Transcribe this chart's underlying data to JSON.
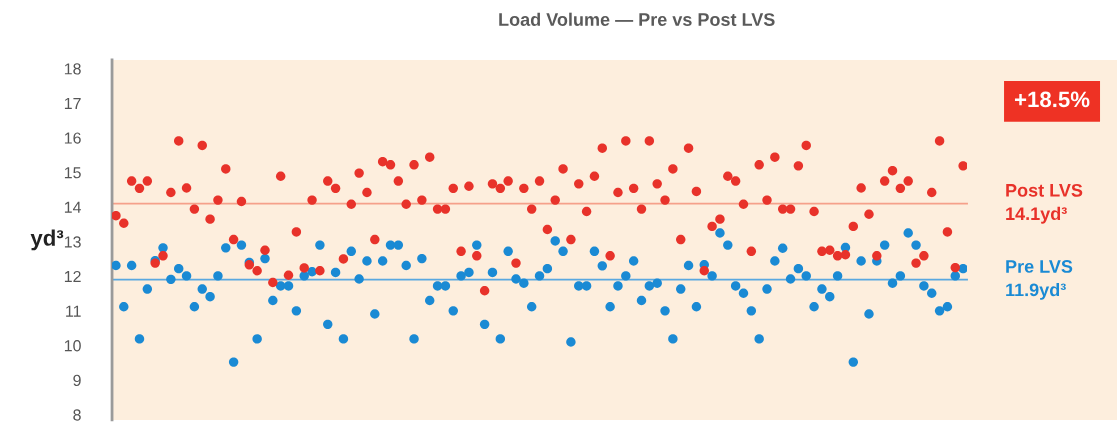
{
  "chart_data": {
    "type": "scatter",
    "title": "Load Volume — Pre vs Post LVS",
    "ylabel": "yd³",
    "categories": [
      null,
      null,
      null,
      null,
      null,
      null,
      null,
      null,
      null,
      null,
      null,
      null,
      null,
      null,
      null,
      null,
      null,
      null,
      null,
      null,
      null,
      null,
      null,
      null,
      null,
      null,
      null,
      null,
      null,
      null,
      null,
      null,
      null,
      null,
      null,
      null,
      null,
      null,
      null,
      null,
      null,
      null,
      null,
      null,
      null,
      null,
      null,
      null,
      null,
      null,
      null,
      null,
      null,
      null,
      null,
      null,
      null,
      null,
      null,
      null,
      null,
      null,
      null,
      null,
      null,
      null,
      null,
      null,
      null,
      null,
      null,
      null,
      null,
      null,
      null,
      null,
      null,
      null,
      null,
      null,
      null,
      null,
      null,
      null,
      null,
      null,
      null,
      null,
      null,
      null,
      null,
      null,
      null,
      null,
      null,
      null,
      null,
      null,
      null,
      null,
      null,
      null,
      null,
      null,
      null,
      null,
      null,
      null,
      null
    ],
    "series": [
      {
        "color": "#e8322a",
        "values": [
          13.75,
          13.53,
          14.75,
          14.54,
          14.75,
          12.38,
          12.59,
          14.42,
          15.91,
          14.55,
          13.94,
          15.78,
          13.65,
          14.2,
          15.1,
          13.06,
          14.16,
          12.33,
          12.16,
          12.75,
          11.82,
          14.89,
          12.03,
          13.28,
          12.24,
          14.2,
          12.16,
          14.75,
          14.54,
          12.5,
          14.08,
          14.98,
          14.42,
          13.06,
          15.31,
          15.22,
          14.75,
          14.08,
          15.22,
          14.2,
          15.44,
          13.94,
          13.94,
          14.54,
          12.72,
          14.6,
          12.59,
          11.58,
          14.67,
          14.54,
          14.75,
          12.38,
          14.54,
          13.94,
          14.75,
          13.35,
          14.2,
          15.1,
          13.06,
          14.67,
          13.87,
          14.89,
          15.7,
          12.59,
          14.42,
          15.91,
          14.54,
          13.94,
          15.91,
          14.67,
          14.2,
          15.1,
          13.06,
          15.7,
          14.45,
          12.16,
          13.44,
          13.65,
          14.89,
          14.75,
          14.08,
          12.72,
          15.22,
          14.2,
          15.44,
          13.94,
          13.94,
          15.19,
          15.78,
          13.87,
          12.72,
          12.75,
          12.59,
          12.62,
          13.44,
          14.55,
          13.79,
          12.59,
          14.75,
          15.05,
          14.54,
          14.75,
          12.38,
          12.59,
          14.42,
          15.91,
          13.28,
          12.25,
          15.19
        ]
      },
      {
        "color": "#1a8ad4",
        "values": [
          12.31,
          11.12,
          12.31,
          10.19,
          11.63,
          12.45,
          12.82,
          11.91,
          12.22,
          12.01,
          11.12,
          11.63,
          11.41,
          12.01,
          12.82,
          9.52,
          12.9,
          12.4,
          10.19,
          12.51,
          11.3,
          11.72,
          11.72,
          11.0,
          12.01,
          12.13,
          12.9,
          10.61,
          12.11,
          10.19,
          12.72,
          11.92,
          12.44,
          10.91,
          12.44,
          12.9,
          12.9,
          12.31,
          10.19,
          12.51,
          11.3,
          11.72,
          11.72,
          11.0,
          12.01,
          12.11,
          12.9,
          10.61,
          12.11,
          10.19,
          12.72,
          11.92,
          11.8,
          11.12,
          12.01,
          12.22,
          13.02,
          12.72,
          10.1,
          11.72,
          11.72,
          12.72,
          12.3,
          11.12,
          11.72,
          12.01,
          12.44,
          11.3,
          11.72,
          11.8,
          11.0,
          10.19,
          11.63,
          12.31,
          11.12,
          12.33,
          12.01,
          13.25,
          12.9,
          11.72,
          11.51,
          11.0,
          10.19,
          11.63,
          12.44,
          12.81,
          11.92,
          12.22,
          12.01,
          11.12,
          11.63,
          11.41,
          12.01,
          12.83,
          9.52,
          12.44,
          10.91,
          12.44,
          12.9,
          11.8,
          12.01,
          13.25,
          12.9,
          11.72,
          11.51,
          11.0,
          11.12,
          12.01,
          12.22
        ]
      }
    ],
    "ylim": [
      7.85,
      18.25
    ],
    "yticks": [
      8,
      9,
      10,
      11,
      12,
      13,
      14,
      15,
      16,
      17,
      18
    ],
    "ref_lines": [
      {
        "axis": "y",
        "value": 14.1,
        "label": "Post LVS\n14.1yd³",
        "color": "#f5a08a"
      },
      {
        "axis": "y",
        "value": 11.9,
        "label": "Pre LVS\n11.9yd³",
        "color": "#5aa8e0"
      }
    ],
    "annotations": [
      "+18.5%"
    ],
    "marker": "circle",
    "grid": false,
    "legend": false
  }
}
